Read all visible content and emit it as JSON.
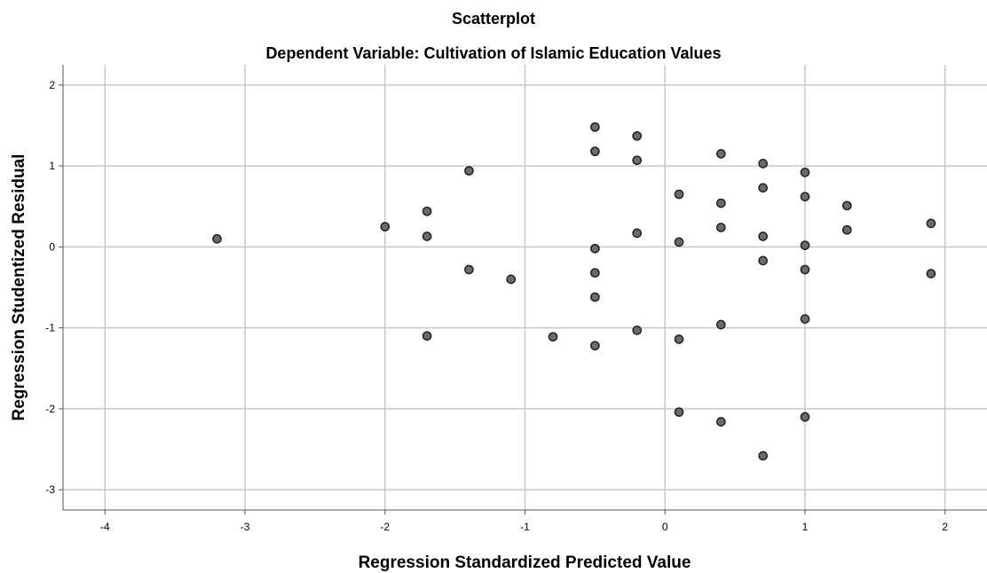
{
  "chart_data": {
    "type": "scatter",
    "title": "Scatterplot",
    "subtitle": "Dependent Variable: Cultivation of Islamic Education Values",
    "xlabel": "Regression Standardized Predicted Value",
    "ylabel": "Regression Studentized Residual",
    "xlim": [
      -4.3,
      2.3
    ],
    "ylim": [
      -3.25,
      2.25
    ],
    "x_ticks": [
      -4,
      -3,
      -2,
      -1,
      0,
      1,
      2
    ],
    "y_ticks": [
      2,
      1,
      0,
      -1,
      -2,
      -3
    ],
    "grid": true,
    "point_color": "#6b6b6b",
    "points": [
      {
        "x": -3.2,
        "y": 0.1
      },
      {
        "x": -2.0,
        "y": 0.25
      },
      {
        "x": -1.7,
        "y": 0.44
      },
      {
        "x": -1.7,
        "y": 0.13
      },
      {
        "x": -1.7,
        "y": -1.1
      },
      {
        "x": -1.4,
        "y": 0.94
      },
      {
        "x": -1.4,
        "y": -0.28
      },
      {
        "x": -1.1,
        "y": -0.4
      },
      {
        "x": -0.8,
        "y": -1.11
      },
      {
        "x": -0.5,
        "y": 1.48
      },
      {
        "x": -0.5,
        "y": 1.18
      },
      {
        "x": -0.5,
        "y": -0.02
      },
      {
        "x": -0.5,
        "y": -0.32
      },
      {
        "x": -0.5,
        "y": -0.62
      },
      {
        "x": -0.5,
        "y": -1.22
      },
      {
        "x": -0.2,
        "y": 1.37
      },
      {
        "x": -0.2,
        "y": 1.07
      },
      {
        "x": -0.2,
        "y": 0.17
      },
      {
        "x": -0.2,
        "y": -1.03
      },
      {
        "x": 0.1,
        "y": 0.65
      },
      {
        "x": 0.1,
        "y": 0.06
      },
      {
        "x": 0.1,
        "y": -1.14
      },
      {
        "x": 0.1,
        "y": -2.04
      },
      {
        "x": 0.4,
        "y": 1.15
      },
      {
        "x": 0.4,
        "y": 0.54
      },
      {
        "x": 0.4,
        "y": 0.24
      },
      {
        "x": 0.4,
        "y": -0.96
      },
      {
        "x": 0.4,
        "y": -2.16
      },
      {
        "x": 0.7,
        "y": 1.03
      },
      {
        "x": 0.7,
        "y": 0.73
      },
      {
        "x": 0.7,
        "y": 0.13
      },
      {
        "x": 0.7,
        "y": -0.17
      },
      {
        "x": 0.7,
        "y": -2.58
      },
      {
        "x": 1.0,
        "y": 0.92
      },
      {
        "x": 1.0,
        "y": 0.62
      },
      {
        "x": 1.0,
        "y": 0.02
      },
      {
        "x": 1.0,
        "y": -0.28
      },
      {
        "x": 1.0,
        "y": -0.89
      },
      {
        "x": 1.0,
        "y": -2.1
      },
      {
        "x": 1.3,
        "y": 0.51
      },
      {
        "x": 1.3,
        "y": 0.21
      },
      {
        "x": 1.9,
        "y": 0.29
      },
      {
        "x": 1.9,
        "y": -0.33
      }
    ]
  }
}
